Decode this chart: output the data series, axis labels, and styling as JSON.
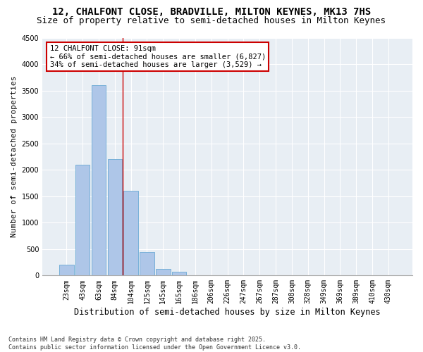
{
  "title_line1": "12, CHALFONT CLOSE, BRADVILLE, MILTON KEYNES, MK13 7HS",
  "title_line2": "Size of property relative to semi-detached houses in Milton Keynes",
  "xlabel": "Distribution of semi-detached houses by size in Milton Keynes",
  "ylabel": "Number of semi-detached properties",
  "categories": [
    "23sqm",
    "43sqm",
    "63sqm",
    "84sqm",
    "104sqm",
    "125sqm",
    "145sqm",
    "165sqm",
    "186sqm",
    "206sqm",
    "226sqm",
    "247sqm",
    "267sqm",
    "287sqm",
    "308sqm",
    "328sqm",
    "349sqm",
    "369sqm",
    "389sqm",
    "410sqm",
    "430sqm"
  ],
  "values": [
    200,
    2100,
    3600,
    2200,
    1600,
    450,
    130,
    70,
    6,
    0,
    0,
    0,
    0,
    0,
    0,
    0,
    0,
    0,
    0,
    0,
    0
  ],
  "bar_color": "#aec6e8",
  "bar_edge_color": "#6aaad4",
  "ylim": [
    0,
    4500
  ],
  "yticks": [
    0,
    500,
    1000,
    1500,
    2000,
    2500,
    3000,
    3500,
    4000,
    4500
  ],
  "property_size": 91,
  "property_label": "12 CHALFONT CLOSE: 91sqm",
  "pct_smaller": 66,
  "count_smaller": 6827,
  "pct_larger": 34,
  "count_larger": 3529,
  "annotation_box_color": "#ffffff",
  "annotation_box_edge_color": "#cc0000",
  "background_color": "#e8eef4",
  "footer_line1": "Contains HM Land Registry data © Crown copyright and database right 2025.",
  "footer_line2": "Contains public sector information licensed under the Open Government Licence v3.0.",
  "title_fontsize": 10,
  "subtitle_fontsize": 9,
  "tick_fontsize": 7,
  "ylabel_fontsize": 8,
  "xlabel_fontsize": 8.5,
  "annotation_fontsize": 7.5,
  "footer_fontsize": 6
}
